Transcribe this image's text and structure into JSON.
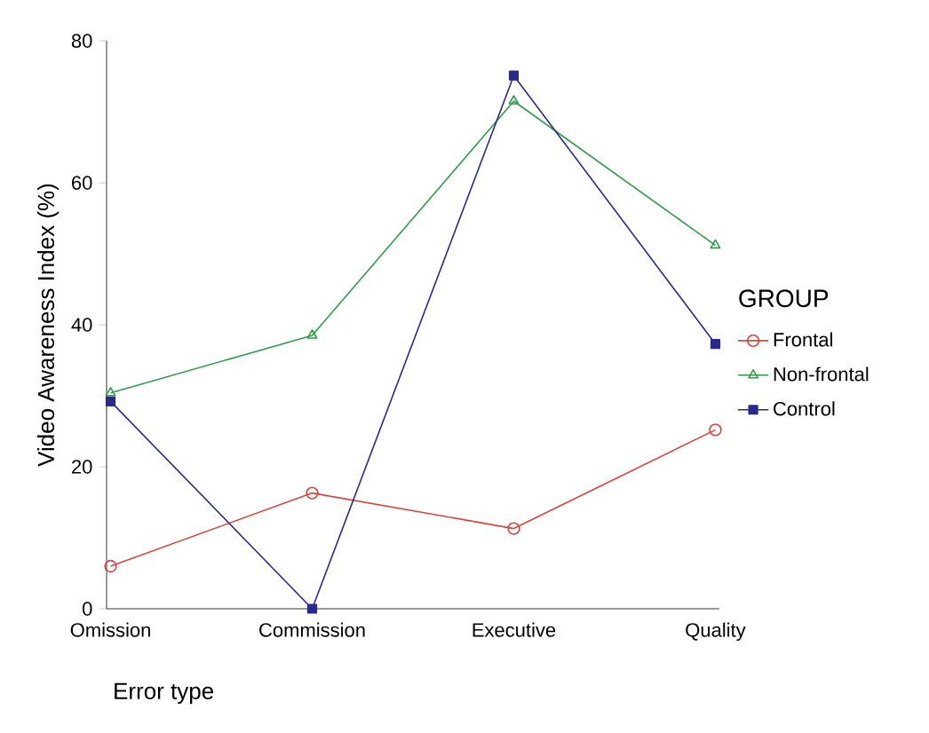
{
  "chart_data": {
    "type": "line",
    "xlabel": "Error type",
    "ylabel": "Video Awareness Index (%)",
    "legend_title": "GROUP",
    "legend": "right",
    "categories": [
      "Omission",
      "Commission",
      "Executive",
      "Quality"
    ],
    "ylim": [
      0,
      80
    ],
    "yticks": [
      0,
      20,
      40,
      60,
      80
    ],
    "series": [
      {
        "name": "Frontal",
        "color": "#d9453c",
        "marker": "circle",
        "values": [
          6.0,
          16.3,
          11.3,
          25.2
        ]
      },
      {
        "name": "Non-frontal",
        "color": "#2e9e4a",
        "marker": "triangle",
        "values": [
          30.4,
          38.5,
          71.5,
          51.2
        ]
      },
      {
        "name": "Control",
        "color": "#2a2a8c",
        "marker": "square",
        "values": [
          29.2,
          0,
          75.1,
          37.3
        ]
      }
    ]
  }
}
